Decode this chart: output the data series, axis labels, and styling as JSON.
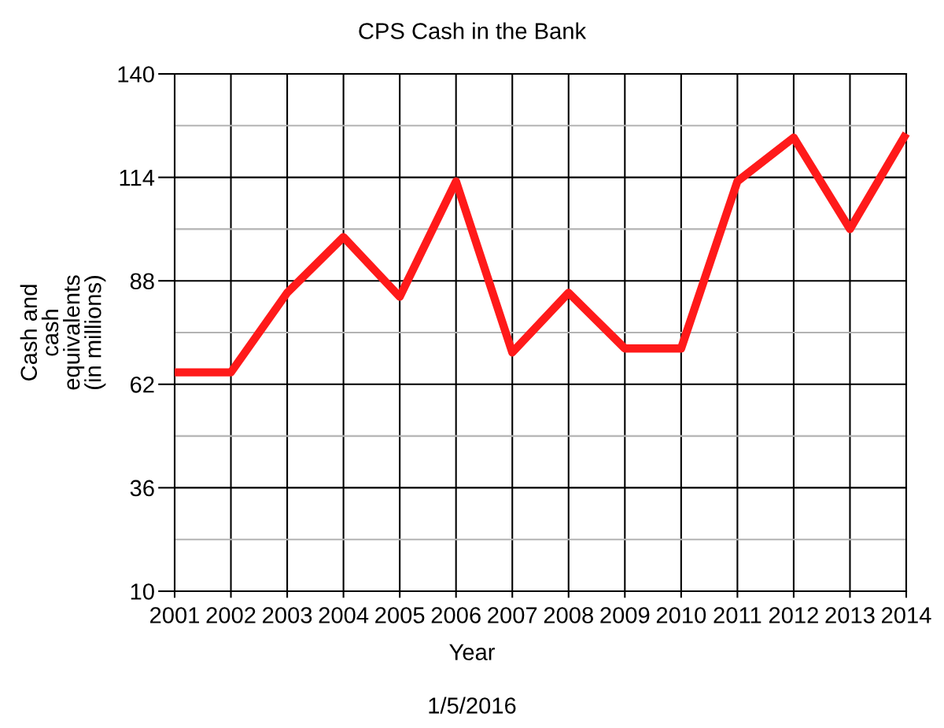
{
  "chart_data": {
    "type": "line",
    "title": "CPS Cash in the Bank",
    "xlabel": "Year",
    "ylabel": "Cash and\ncash\nequivalents\n(in millions)",
    "annotations": [
      "1/5/2016"
    ],
    "x": [
      2001,
      2002,
      2003,
      2004,
      2005,
      2006,
      2007,
      2008,
      2009,
      2010,
      2011,
      2012,
      2013,
      2014
    ],
    "series": [
      {
        "color": "#ff1a1a",
        "values": [
          65,
          65,
          85,
          99,
          84,
          113,
          70,
          85,
          71,
          71,
          113,
          124,
          101,
          125
        ]
      }
    ],
    "xlim": [
      2001,
      2014
    ],
    "xticks": [
      2001,
      2002,
      2003,
      2004,
      2005,
      2006,
      2007,
      2008,
      2009,
      2010,
      2011,
      2012,
      2013,
      2014
    ],
    "ylim": [
      10,
      140
    ],
    "yticks": [
      10,
      {
        "value": 23,
        "label": null
      },
      36,
      {
        "value": 49,
        "label": null
      },
      62,
      {
        "value": 75,
        "label": null
      },
      88,
      {
        "value": 101,
        "label": null
      },
      114,
      {
        "value": 127,
        "label": null
      },
      140
    ],
    "grid": true
  }
}
